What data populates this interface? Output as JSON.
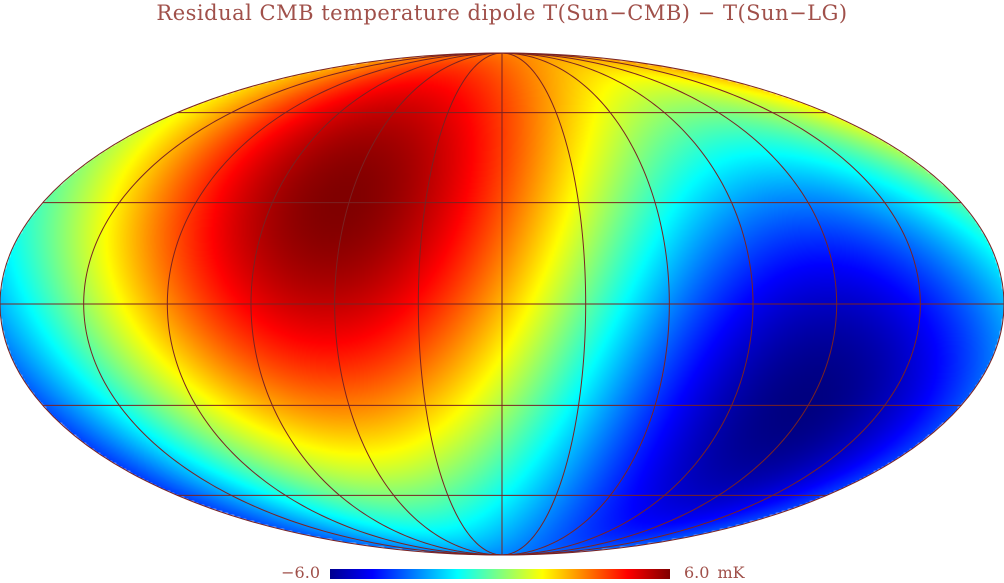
{
  "map": {
    "title": "Residual CMB temperature dipole T(Sun−CMB) − T(Sun−LG)",
    "projection": "mollweide",
    "colormap": "jet",
    "hot_spot": {
      "longitude_deg": 63,
      "latitude_deg": 30
    },
    "cold_spot": {
      "longitude_deg": -63,
      "latitude_deg": -30
    },
    "graticule": {
      "longitudes_deg": [
        -150,
        -120,
        -90,
        -60,
        -30,
        0,
        30,
        60,
        90,
        120,
        150
      ],
      "latitudes_deg": [
        -60,
        -30,
        0,
        30,
        60
      ]
    },
    "colors": {
      "text": "#a0504a",
      "graticule": "#7a2222",
      "outline": "#7a2222"
    }
  },
  "colorbar": {
    "min_label": "−6.0",
    "max_label": "6.0",
    "unit": "mK",
    "min_value": -6.0,
    "max_value": 6.0
  }
}
